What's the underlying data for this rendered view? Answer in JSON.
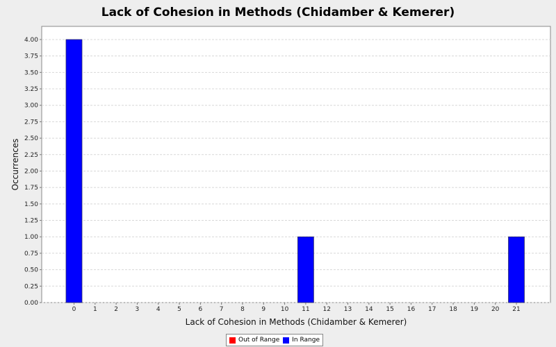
{
  "chart_data": {
    "type": "bar",
    "title": "Lack of Cohesion in Methods (Chidamber & Kemerer)",
    "xlabel": "Lack of Cohesion in Methods (Chidamber & Kemerer)",
    "ylabel": "Occurrences",
    "categories": [
      "0",
      "1",
      "2",
      "3",
      "4",
      "5",
      "6",
      "7",
      "8",
      "9",
      "10",
      "11",
      "12",
      "13",
      "14",
      "15",
      "16",
      "17",
      "18",
      "19",
      "20",
      "21"
    ],
    "series": [
      {
        "name": "Out of Range",
        "color": "#ff0000",
        "values": [
          0,
          0,
          0,
          0,
          0,
          0,
          0,
          0,
          0,
          0,
          0,
          0,
          0,
          0,
          0,
          0,
          0,
          0,
          0,
          0,
          0,
          0
        ]
      },
      {
        "name": "In Range",
        "color": "#0000ff",
        "values": [
          4,
          0,
          0,
          0,
          0,
          0,
          0,
          0,
          0,
          0,
          0,
          1,
          0,
          0,
          0,
          0,
          0,
          0,
          0,
          0,
          0,
          1
        ]
      }
    ],
    "ylim": [
      0,
      4.2
    ],
    "yticks": [
      "0.00",
      "0.25",
      "0.50",
      "0.75",
      "1.00",
      "1.25",
      "1.50",
      "1.75",
      "2.00",
      "2.25",
      "2.50",
      "2.75",
      "3.00",
      "3.25",
      "3.50",
      "3.75",
      "4.00"
    ],
    "grid": true,
    "legend_position": "bottom"
  }
}
